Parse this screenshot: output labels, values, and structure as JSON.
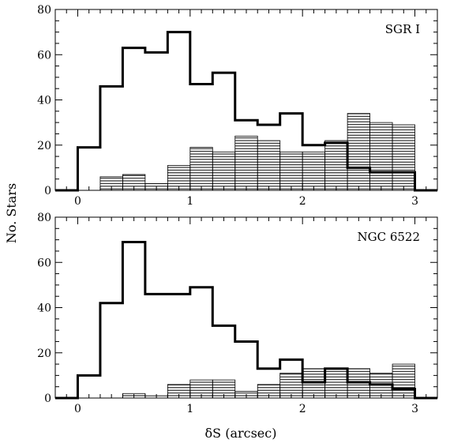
{
  "ylabel": "No. Stars",
  "xlabel": "δS (arcsec)",
  "chart_data": [
    {
      "type": "bar",
      "panel_label": "SGR I",
      "xlim": [
        -0.2,
        3.2
      ],
      "ylim": [
        0,
        80
      ],
      "x_ticks": [
        0,
        1,
        2,
        3
      ],
      "x_tick_labels": [
        "0",
        "1",
        "2",
        "3"
      ],
      "y_ticks": [
        0,
        20,
        40,
        60,
        80
      ],
      "y_tick_labels": [
        "0",
        "20",
        "40",
        "60",
        "80"
      ],
      "bin_edges": [
        -0.2,
        0.0,
        0.2,
        0.4,
        0.6,
        0.8,
        1.0,
        1.2,
        1.4,
        1.6,
        1.8,
        2.0,
        2.2,
        2.4,
        2.6,
        2.8,
        3.0,
        3.2
      ],
      "series": [
        {
          "style": "outline-thick",
          "values": [
            0,
            19,
            46,
            63,
            61,
            70,
            47,
            52,
            31,
            29,
            34,
            20,
            21,
            10,
            8,
            8,
            0
          ]
        },
        {
          "style": "hatched",
          "values": [
            0,
            0,
            6,
            7,
            3,
            11,
            19,
            17,
            24,
            22,
            17,
            17,
            22,
            34,
            30,
            29,
            0
          ]
        }
      ]
    },
    {
      "type": "bar",
      "panel_label": "NGC 6522",
      "xlim": [
        -0.2,
        3.2
      ],
      "ylim": [
        0,
        80
      ],
      "x_ticks": [
        0,
        1,
        2,
        3
      ],
      "x_tick_labels": [
        "0",
        "1",
        "2",
        "3"
      ],
      "y_ticks": [
        0,
        20,
        40,
        60,
        80
      ],
      "y_tick_labels": [
        "0",
        "20",
        "40",
        "60",
        "80"
      ],
      "bin_edges": [
        -0.2,
        0.0,
        0.2,
        0.4,
        0.6,
        0.8,
        1.0,
        1.2,
        1.4,
        1.6,
        1.8,
        2.0,
        2.2,
        2.4,
        2.6,
        2.8,
        3.0,
        3.2
      ],
      "series": [
        {
          "style": "outline-thick",
          "values": [
            0,
            10,
            42,
            69,
            46,
            46,
            49,
            32,
            25,
            13,
            17,
            7,
            13,
            7,
            6,
            4,
            0
          ]
        },
        {
          "style": "hatched",
          "values": [
            0,
            0,
            0,
            2,
            1,
            6,
            8,
            8,
            3,
            6,
            11,
            13,
            13,
            13,
            11,
            15,
            0
          ]
        }
      ]
    }
  ]
}
